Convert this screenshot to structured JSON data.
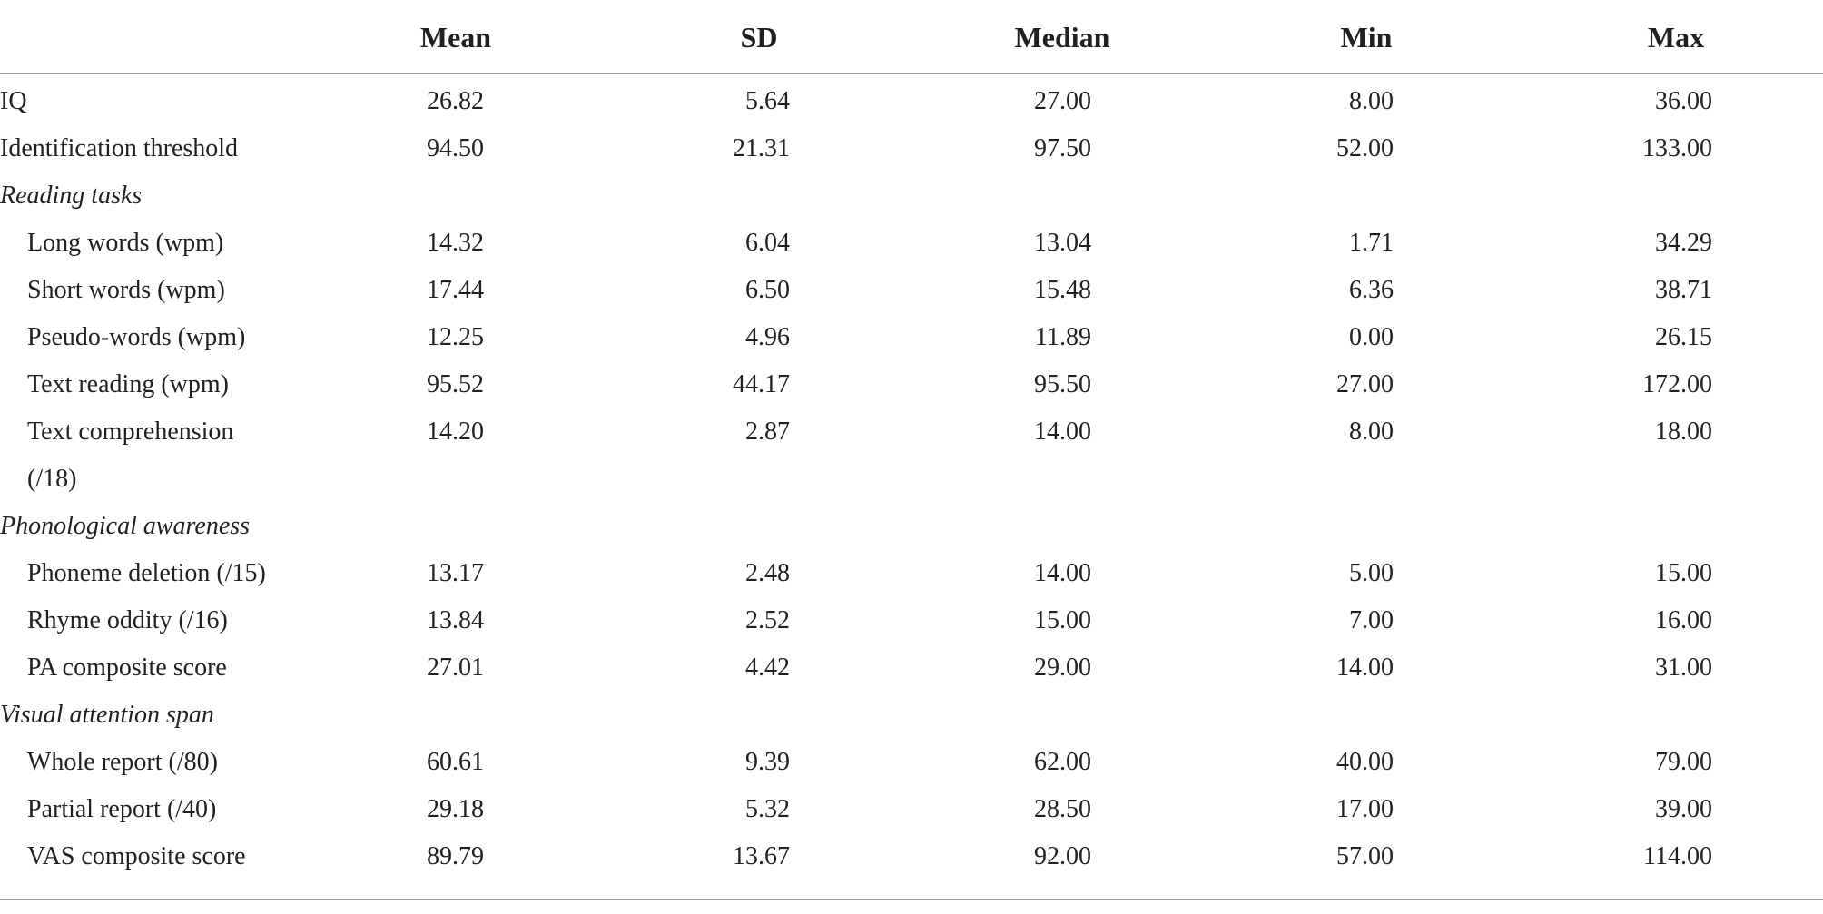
{
  "table": {
    "columns": [
      "Mean",
      "SD",
      "Median",
      "Min",
      "Max"
    ],
    "groups": [
      {
        "rows": [
          {
            "label": "IQ",
            "values": [
              "26.82",
              "5.64",
              "27.00",
              "8.00",
              "36.00"
            ]
          },
          {
            "label": "Identification threshold",
            "values": [
              "94.50",
              "21.31",
              "97.50",
              "52.00",
              "133.00"
            ]
          }
        ]
      },
      {
        "title": "Reading tasks",
        "rows": [
          {
            "label": "Long words (wpm)",
            "values": [
              "14.32",
              "6.04",
              "13.04",
              "1.71",
              "34.29"
            ]
          },
          {
            "label": "Short words (wpm)",
            "values": [
              "17.44",
              "6.50",
              "15.48",
              "6.36",
              "38.71"
            ]
          },
          {
            "label": "Pseudo-words (wpm)",
            "values": [
              "12.25",
              "4.96",
              "11.89",
              "0.00",
              "26.15"
            ]
          },
          {
            "label": "Text reading (wpm)",
            "values": [
              "95.52",
              "44.17",
              "95.50",
              "27.00",
              "172.00"
            ]
          },
          {
            "label": "Text comprehension (/18)",
            "values": [
              "14.20",
              "2.87",
              "14.00",
              "8.00",
              "18.00"
            ]
          }
        ]
      },
      {
        "title": "Phonological awareness",
        "rows": [
          {
            "label": "Phoneme deletion (/15)",
            "values": [
              "13.17",
              "2.48",
              "14.00",
              "5.00",
              "15.00"
            ]
          },
          {
            "label": "Rhyme oddity (/16)",
            "values": [
              "13.84",
              "2.52",
              "15.00",
              "7.00",
              "16.00"
            ]
          },
          {
            "label": "PA composite score",
            "values": [
              "27.01",
              "4.42",
              "29.00",
              "14.00",
              "31.00"
            ]
          }
        ]
      },
      {
        "title": "Visual attention span",
        "rows": [
          {
            "label": "Whole report (/80)",
            "values": [
              "60.61",
              "9.39",
              "62.00",
              "40.00",
              "79.00"
            ]
          },
          {
            "label": "Partial report (/40)",
            "values": [
              "29.18",
              "5.32",
              "28.50",
              "17.00",
              "39.00"
            ]
          },
          {
            "label": "VAS composite score",
            "values": [
              "89.79",
              "13.67",
              "92.00",
              "57.00",
              "114.00"
            ]
          }
        ]
      }
    ]
  }
}
